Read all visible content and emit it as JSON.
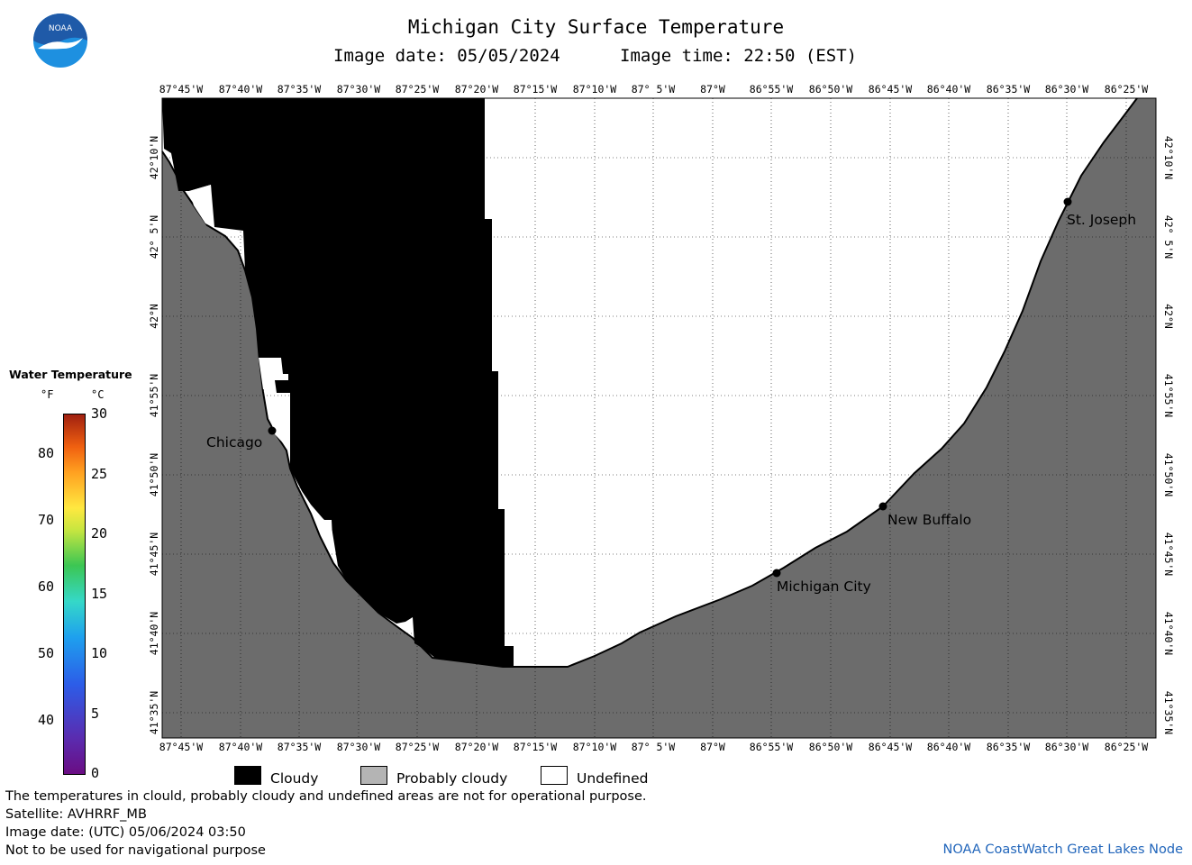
{
  "header": {
    "title": "Michigan City Surface Temperature",
    "image_date": "Image date: 05/05/2024",
    "image_time": "Image time: 22:50 (EST)"
  },
  "logo": {
    "text": "NOAA",
    "colors": {
      "top": "#1f5aa8",
      "bottom": "#1e90e0",
      "bird": "#ffffff"
    }
  },
  "map": {
    "lon_ticks": [
      "87°45'W",
      "87°40'W",
      "87°35'W",
      "87°30'W",
      "87°25'W",
      "87°20'W",
      "87°15'W",
      "87°10'W",
      "87° 5'W",
      "87°W",
      "86°55'W",
      "86°50'W",
      "86°45'W",
      "86°40'W",
      "86°35'W",
      "86°30'W",
      "86°25'W"
    ],
    "lat_ticks": [
      "42°10'N",
      "42° 5'N",
      "42°N",
      "41°55'N",
      "41°50'N",
      "41°45'N",
      "41°40'N",
      "41°35'N"
    ],
    "colors": {
      "land": "#6c6c6c",
      "cloud": "#000000",
      "undefined": "#ffffff",
      "grid": "#000000"
    },
    "cities": [
      {
        "name": "Chicago"
      },
      {
        "name": "St. Joseph"
      },
      {
        "name": "New Buffalo"
      },
      {
        "name": "Michigan City"
      }
    ]
  },
  "colorbar": {
    "title": "Water Temperature",
    "unit_f": "°F",
    "unit_c": "°C",
    "f_ticks": [
      "80",
      "70",
      "60",
      "50",
      "40"
    ],
    "c_ticks": [
      "30",
      "25",
      "20",
      "15",
      "10",
      "5",
      "0"
    ]
  },
  "legend": {
    "items": [
      {
        "label": "Cloudy",
        "color": "#000000"
      },
      {
        "label": "Probably cloudy",
        "color": "#b4b4b4"
      },
      {
        "label": "Undefined",
        "color": "#ffffff"
      }
    ]
  },
  "footer": {
    "note": "The temperatures in clould, probably cloudy and undefined areas are not for operational purpose.",
    "satellite": "Satellite: AVHRRF_MB",
    "image_date_utc": "Image date: (UTC) 05/06/2024  03:50",
    "disclaimer": "Not to be used for navigational purpose",
    "credit": "NOAA CoastWatch Great Lakes Node"
  }
}
